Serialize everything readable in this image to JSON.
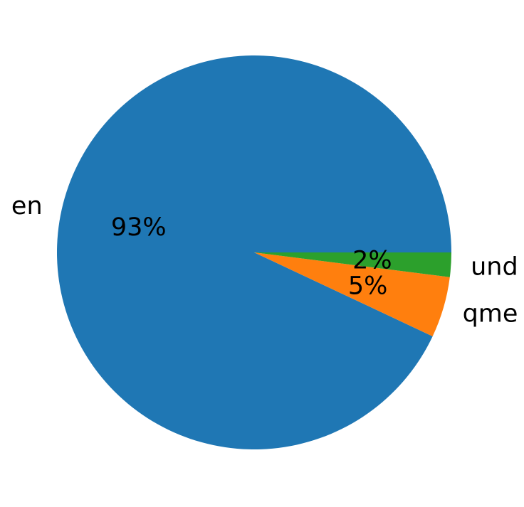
{
  "chart_data": {
    "type": "pie",
    "title": "",
    "labels": [
      "en",
      "qme",
      "und"
    ],
    "values": [
      93,
      5,
      2
    ],
    "pct_labels": [
      "93%",
      "5%",
      "2%"
    ],
    "colors": [
      "#1f77b4",
      "#ff7f0e",
      "#2ca02c"
    ],
    "start_angle_deg": 0,
    "direction": "counterclockwise",
    "label_distance": 1.1,
    "pct_distance": 0.6,
    "legend": "none",
    "background_color": "#ffffff",
    "text_color": "#000000"
  }
}
